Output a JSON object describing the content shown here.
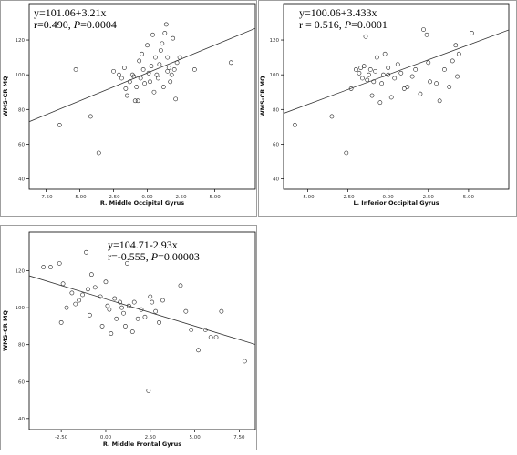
{
  "chart_data": [
    {
      "type": "scatter",
      "xlabel": "R. Middle Occipital Gyrus",
      "ylabel": "WMS-CR MQ",
      "xlim": [
        -8.75,
        8.0
      ],
      "ylim": [
        34,
        141
      ],
      "xticks": [
        -7.5,
        -5.0,
        -2.5,
        0.0,
        2.5,
        5.0
      ],
      "xtick_labels": [
        "-7.50",
        "-5.00",
        "-2.50",
        "0.00",
        "2.50",
        "5.00"
      ],
      "yticks": [
        40,
        60,
        80,
        100,
        120
      ],
      "annotation": {
        "line1": "y=101.06+3.21x",
        "r_text": "r=0.490, ",
        "p_label": "P",
        "p_value": "=0.0004"
      },
      "fit": {
        "intercept": 101.06,
        "slope": 3.21
      },
      "points": [
        [
          -6.5,
          71
        ],
        [
          -5.3,
          103
        ],
        [
          -4.2,
          76
        ],
        [
          -3.6,
          55
        ],
        [
          -2.5,
          102
        ],
        [
          -2.1,
          100
        ],
        [
          -1.9,
          98
        ],
        [
          -1.7,
          104
        ],
        [
          -1.6,
          92
        ],
        [
          -1.5,
          88
        ],
        [
          -1.3,
          96
        ],
        [
          -1.1,
          100
        ],
        [
          -0.9,
          85
        ],
        [
          -0.8,
          93
        ],
        [
          -0.7,
          85
        ],
        [
          -0.6,
          108
        ],
        [
          -0.5,
          98
        ],
        [
          -0.4,
          112
        ],
        [
          -0.3,
          103
        ],
        [
          -0.2,
          95
        ],
        [
          0.0,
          117
        ],
        [
          0.1,
          101
        ],
        [
          0.2,
          96
        ],
        [
          0.3,
          105
        ],
        [
          0.4,
          123
        ],
        [
          0.5,
          90
        ],
        [
          0.6,
          110
        ],
        [
          0.7,
          100
        ],
        [
          0.8,
          98
        ],
        [
          0.9,
          106
        ],
        [
          1.0,
          114
        ],
        [
          1.1,
          118
        ],
        [
          1.2,
          93
        ],
        [
          1.3,
          124
        ],
        [
          1.4,
          129
        ],
        [
          1.5,
          110
        ],
        [
          1.6,
          104
        ],
        [
          1.7,
          96
        ],
        [
          1.8,
          100
        ],
        [
          1.9,
          121
        ],
        [
          2.0,
          103
        ],
        [
          2.1,
          86
        ],
        [
          2.2,
          107
        ],
        [
          2.4,
          110
        ],
        [
          1.5,
          102
        ],
        [
          -1.0,
          99
        ],
        [
          3.5,
          103
        ],
        [
          6.2,
          107
        ]
      ]
    },
    {
      "type": "scatter",
      "xlabel": "L. Inferior Occipital Gyrus",
      "ylabel": "WMS-CR MQ",
      "xlim": [
        -6.5,
        7.5
      ],
      "ylim": [
        34,
        141
      ],
      "xticks": [
        -5.0,
        -2.5,
        0.0,
        2.5,
        5.0
      ],
      "xtick_labels": [
        "-5.00",
        "-2.50",
        "0.00",
        "2.50",
        "5.00"
      ],
      "yticks": [
        40,
        60,
        80,
        100,
        120
      ],
      "annotation": {
        "line1": "y=100.06+3.433x",
        "r_text": "r = 0.516, ",
        "p_label": "P",
        "p_value": "=0.0001"
      },
      "fit": {
        "intercept": 100.06,
        "slope": 3.433
      },
      "points": [
        [
          -5.8,
          71
        ],
        [
          -3.5,
          76
        ],
        [
          -2.6,
          55
        ],
        [
          -2.3,
          92
        ],
        [
          -2.0,
          103
        ],
        [
          -1.8,
          101
        ],
        [
          -1.6,
          98
        ],
        [
          -1.5,
          105
        ],
        [
          -1.4,
          122
        ],
        [
          -1.3,
          97
        ],
        [
          -1.2,
          100
        ],
        [
          -1.1,
          103
        ],
        [
          -1.0,
          88
        ],
        [
          -0.9,
          96
        ],
        [
          -0.8,
          102
        ],
        [
          -0.7,
          110
        ],
        [
          -0.5,
          84
        ],
        [
          -0.4,
          95
        ],
        [
          -0.3,
          100
        ],
        [
          -0.2,
          112
        ],
        [
          0.0,
          104
        ],
        [
          0.2,
          87
        ],
        [
          0.4,
          98
        ],
        [
          0.6,
          106
        ],
        [
          0.8,
          101
        ],
        [
          1.0,
          92
        ],
        [
          1.2,
          93
        ],
        [
          1.5,
          99
        ],
        [
          1.7,
          103
        ],
        [
          2.0,
          89
        ],
        [
          2.2,
          126
        ],
        [
          2.4,
          123
        ],
        [
          2.5,
          107
        ],
        [
          2.6,
          96
        ],
        [
          3.0,
          95
        ],
        [
          3.2,
          85
        ],
        [
          3.5,
          103
        ],
        [
          3.8,
          93
        ],
        [
          4.0,
          108
        ],
        [
          4.2,
          117
        ],
        [
          4.3,
          99
        ],
        [
          4.4,
          112
        ],
        [
          5.2,
          124
        ],
        [
          -1.7,
          104
        ],
        [
          0.0,
          100
        ]
      ]
    },
    {
      "type": "scatter",
      "xlabel": "R. Middle Frontal Gyrus",
      "ylabel": "WMS-CR MQ",
      "xlim": [
        -4.3,
        8.4
      ],
      "ylim": [
        34,
        141
      ],
      "xticks": [
        -2.5,
        0.0,
        2.5,
        5.0,
        7.5
      ],
      "xtick_labels": [
        "-2.50",
        "0.00",
        "2.50",
        "5.00",
        "7.50"
      ],
      "yticks": [
        40,
        60,
        80,
        100,
        120
      ],
      "annotation": {
        "line1": "y=104.71-2.93x",
        "r_text": "r=-0.555, ",
        "p_label": "P",
        "p_value": "=0.00003"
      },
      "fit": {
        "intercept": 104.71,
        "slope": -2.93
      },
      "points": [
        [
          -3.5,
          122
        ],
        [
          -3.1,
          122
        ],
        [
          -2.6,
          124
        ],
        [
          -2.4,
          113
        ],
        [
          -2.5,
          92
        ],
        [
          -2.2,
          100
        ],
        [
          -1.9,
          108
        ],
        [
          -1.7,
          102
        ],
        [
          -1.5,
          104
        ],
        [
          -1.3,
          107
        ],
        [
          -1.1,
          130
        ],
        [
          -1.0,
          110
        ],
        [
          -0.9,
          96
        ],
        [
          -0.8,
          118
        ],
        [
          -0.6,
          111
        ],
        [
          -0.3,
          106
        ],
        [
          -0.2,
          90
        ],
        [
          0.0,
          114
        ],
        [
          0.1,
          101
        ],
        [
          0.2,
          99
        ],
        [
          0.3,
          86
        ],
        [
          0.5,
          105
        ],
        [
          0.6,
          94
        ],
        [
          0.8,
          103
        ],
        [
          0.9,
          100
        ],
        [
          1.0,
          97
        ],
        [
          1.1,
          90
        ],
        [
          1.2,
          124
        ],
        [
          1.3,
          101
        ],
        [
          1.5,
          87
        ],
        [
          1.6,
          103
        ],
        [
          1.8,
          94
        ],
        [
          2.0,
          99
        ],
        [
          2.2,
          95
        ],
        [
          2.4,
          55
        ],
        [
          2.5,
          106
        ],
        [
          2.6,
          103
        ],
        [
          2.8,
          98
        ],
        [
          3.0,
          92
        ],
        [
          3.2,
          104
        ],
        [
          4.2,
          112
        ],
        [
          4.5,
          98
        ],
        [
          4.8,
          88
        ],
        [
          5.2,
          77
        ],
        [
          5.6,
          88
        ],
        [
          5.9,
          84
        ],
        [
          6.5,
          98
        ],
        [
          7.8,
          71
        ],
        [
          6.2,
          84
        ]
      ]
    }
  ]
}
